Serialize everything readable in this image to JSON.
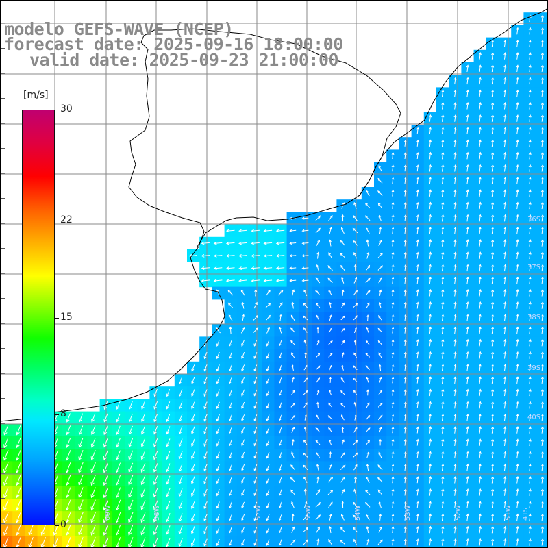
{
  "title": {
    "line1": "modelo GEFS-WAVE (NCEP)",
    "line2": "forecast date: 2025-09-16 18:00:00",
    "line3": "valid date: 2025-09-23 21:00:00"
  },
  "colorbar": {
    "unit": "[m/s]",
    "ticks": [
      "30",
      "22",
      "15",
      "8",
      "0"
    ],
    "tick_values": [
      30,
      22,
      15,
      8,
      0
    ],
    "range": [
      0,
      30
    ],
    "colormap": "blue-cyan-green-yellow-red-magenta"
  },
  "colors": {
    "ocean_low": "#0a32f0",
    "ocean_mid": "#0a6ef5",
    "ocean_cyan": "#12c8ff",
    "ocean_green": "#20e83c",
    "land": "#ffffff",
    "grid": "#8a8a8a",
    "coastline": "#000000",
    "arrows": "#ffffff"
  },
  "map": {
    "field": "wind speed with direction arrows",
    "longitude_labels": [
      "60W",
      "58W",
      "57W",
      "55W",
      "54W",
      "53W",
      "52W",
      "51W",
      "41S"
    ],
    "latitude_labels": [
      "36S",
      "37S",
      "38S",
      "39S",
      "40S"
    ]
  }
}
